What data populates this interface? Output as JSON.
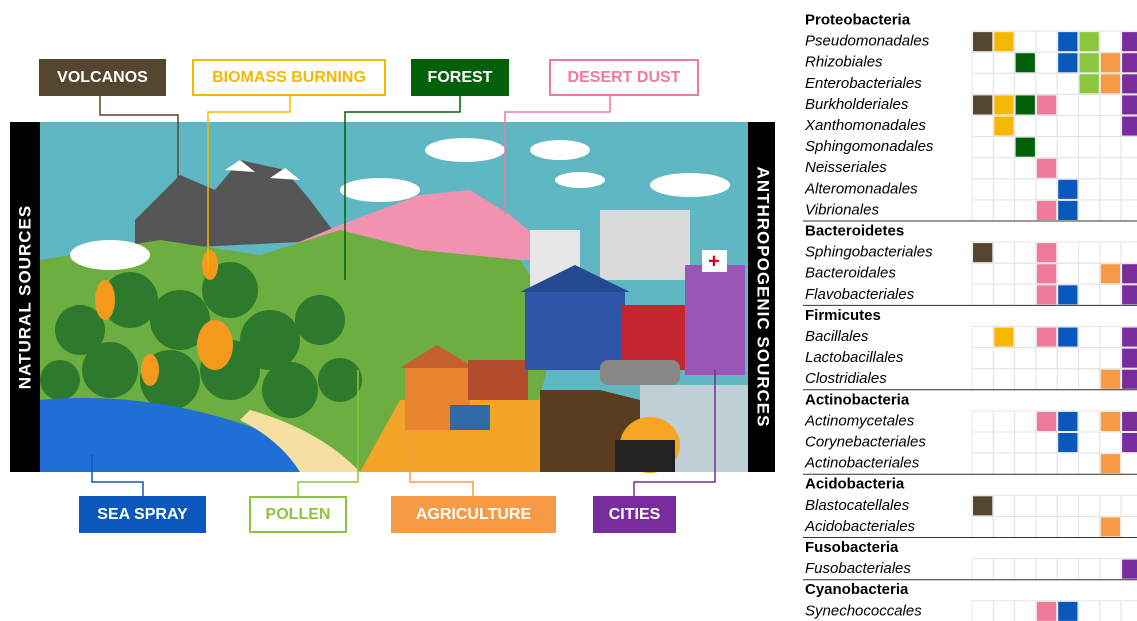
{
  "side_labels": {
    "left": "NATURAL SOURCES",
    "right": "ANTHROPOGENIC SOURCES"
  },
  "sources": [
    {
      "name": "VOLCANOS",
      "color": "#55472f"
    },
    {
      "name": "BIOMASS BURNING",
      "color": "#f5b800"
    },
    {
      "name": "FOREST",
      "color": "#02600a"
    },
    {
      "name": "DESERT DUST",
      "color": "#f07a9c"
    },
    {
      "name": "SEA SPRAY",
      "color": "#0b58bd"
    },
    {
      "name": "POLLEN",
      "color": "#8cc63f"
    },
    {
      "name": "AGRICULTURE",
      "color": "#f79a45"
    },
    {
      "name": "CITIES",
      "color": "#7a2b9c"
    }
  ],
  "groups": [
    {
      "name": "Proteobacteria",
      "orders": [
        {
          "name": "Pseudomonadales",
          "sources": [
            0,
            1,
            4,
            5,
            7
          ]
        },
        {
          "name": "Rhizobiales",
          "sources": [
            2,
            4,
            5,
            6,
            7
          ]
        },
        {
          "name": "Enterobacteriales",
          "sources": [
            5,
            6,
            7
          ]
        },
        {
          "name": "Burkholderiales",
          "sources": [
            0,
            1,
            2,
            3,
            7
          ]
        },
        {
          "name": "Xanthomonadales",
          "sources": [
            1,
            7
          ]
        },
        {
          "name": "Sphingomonadales",
          "sources": [
            2
          ]
        },
        {
          "name": "Neisseriales",
          "sources": [
            3
          ]
        },
        {
          "name": "Alteromonadales",
          "sources": [
            4
          ]
        },
        {
          "name": "Vibrionales",
          "sources": [
            3,
            4
          ]
        }
      ]
    },
    {
      "name": "Bacteroidetes",
      "orders": [
        {
          "name": "Sphingobacteriales",
          "sources": [
            0,
            3
          ]
        },
        {
          "name": "Bacteroidales",
          "sources": [
            3,
            6,
            7
          ]
        },
        {
          "name": "Flavobacteriales",
          "sources": [
            3,
            4,
            7
          ]
        }
      ]
    },
    {
      "name": "Firmicutes",
      "orders": [
        {
          "name": "Bacillales",
          "sources": [
            1,
            3,
            4,
            7
          ]
        },
        {
          "name": "Lactobacillales",
          "sources": [
            7
          ]
        },
        {
          "name": "Clostridiales",
          "sources": [
            6,
            7
          ]
        }
      ]
    },
    {
      "name": "Actinobacteria",
      "orders": [
        {
          "name": "Actinomycetales",
          "sources": [
            3,
            4,
            6,
            7
          ]
        },
        {
          "name": "Corynebacteriales",
          "sources": [
            4,
            7
          ]
        },
        {
          "name": "Actinobacteriales",
          "sources": [
            6
          ]
        }
      ]
    },
    {
      "name": "Acidobacteria",
      "orders": [
        {
          "name": "Blastocatellales",
          "sources": [
            0
          ]
        },
        {
          "name": "Acidobacteriales",
          "sources": [
            6
          ]
        }
      ]
    },
    {
      "name": "Fusobacteria",
      "orders": [
        {
          "name": "Fusobacteriales",
          "sources": [
            7
          ]
        }
      ]
    },
    {
      "name": "Cyanobacteria",
      "orders": [
        {
          "name": "Synechococcales",
          "sources": [
            3,
            4
          ]
        }
      ]
    }
  ]
}
